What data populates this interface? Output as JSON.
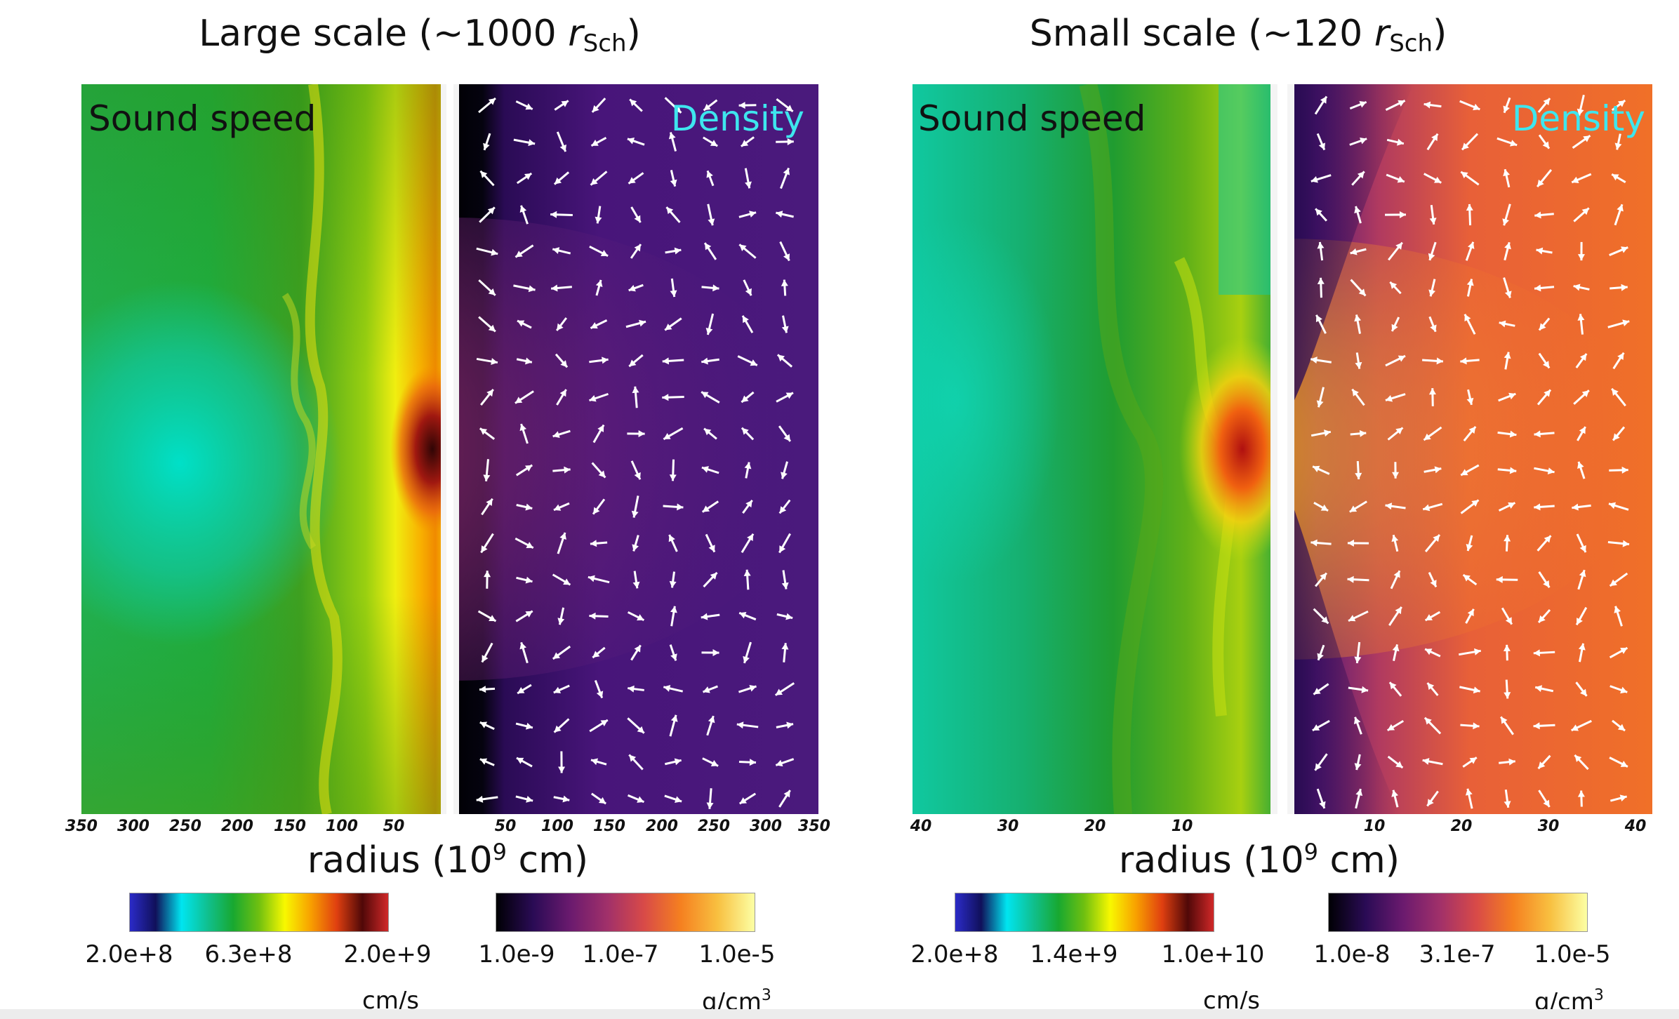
{
  "chart_data": [
    {
      "type": "heatmap",
      "title_prefix": "Large scale (~1000 ",
      "title_r": "r",
      "title_sub": "Sch",
      "title_suffix": ")",
      "left_label": "Sound speed",
      "right_label": "Density",
      "xlabel_prefix": "radius (10",
      "xlabel_exp": "9",
      "xlabel_suffix": " cm)",
      "xticks_left": [
        "350",
        "300",
        "250",
        "200",
        "150",
        "100",
        "50"
      ],
      "xticks_right": [
        "50",
        "100",
        "150",
        "200",
        "250",
        "300",
        "350"
      ],
      "xlim": [
        -350,
        350
      ],
      "colorbars": [
        {
          "name": "sound-speed",
          "ticks": [
            "2.0e+8",
            "6.3e+8",
            "2.0e+9"
          ],
          "unit": "cm/s",
          "unit_exp": "",
          "colors": [
            "#2b2bc8",
            "#10105a",
            "#00e5f0",
            "#10c090",
            "#18a830",
            "#70c010",
            "#f8f800",
            "#f8a000",
            "#e04010",
            "#500808",
            "#d02828"
          ]
        },
        {
          "name": "density",
          "ticks": [
            "1.0e-9",
            "1.0e-7",
            "1.0e-5"
          ],
          "unit": "g/cm",
          "unit_exp": "3",
          "colors": [
            "#000004",
            "#2a0b55",
            "#6a1a6e",
            "#a0306a",
            "#d84a48",
            "#f58020",
            "#f8c040",
            "#fcffa4"
          ]
        }
      ]
    },
    {
      "type": "heatmap",
      "title_prefix": "Small scale (~120 ",
      "title_r": "r",
      "title_sub": "Sch",
      "title_suffix": ")",
      "left_label": "Sound speed",
      "right_label": "Density",
      "xlabel_prefix": "radius (10",
      "xlabel_exp": "9",
      "xlabel_suffix": " cm)",
      "xticks_left": [
        "40",
        "30",
        "20",
        "10"
      ],
      "xticks_right": [
        "10",
        "20",
        "30",
        "40"
      ],
      "xlim": [
        -42,
        42
      ],
      "colorbars": [
        {
          "name": "sound-speed",
          "ticks": [
            "2.0e+8",
            "1.4e+9",
            "1.0e+10"
          ],
          "unit": "cm/s",
          "unit_exp": "",
          "colors": [
            "#2b2bc8",
            "#10105a",
            "#00e5f0",
            "#10c090",
            "#18a830",
            "#70c010",
            "#f8f800",
            "#f8a000",
            "#e04010",
            "#500808",
            "#d02828"
          ]
        },
        {
          "name": "density",
          "ticks": [
            "1.0e-8",
            "3.1e-7",
            "1.0e-5"
          ],
          "unit": "g/cm",
          "unit_exp": "3",
          "colors": [
            "#000004",
            "#2a0b55",
            "#6a1a6e",
            "#a0306a",
            "#d84a48",
            "#f58020",
            "#f8c040",
            "#fcffa4"
          ]
        }
      ]
    }
  ],
  "colors": {
    "left_label": "#111111",
    "right_label": "#3ee6ee",
    "arrow": "#ffffff"
  }
}
